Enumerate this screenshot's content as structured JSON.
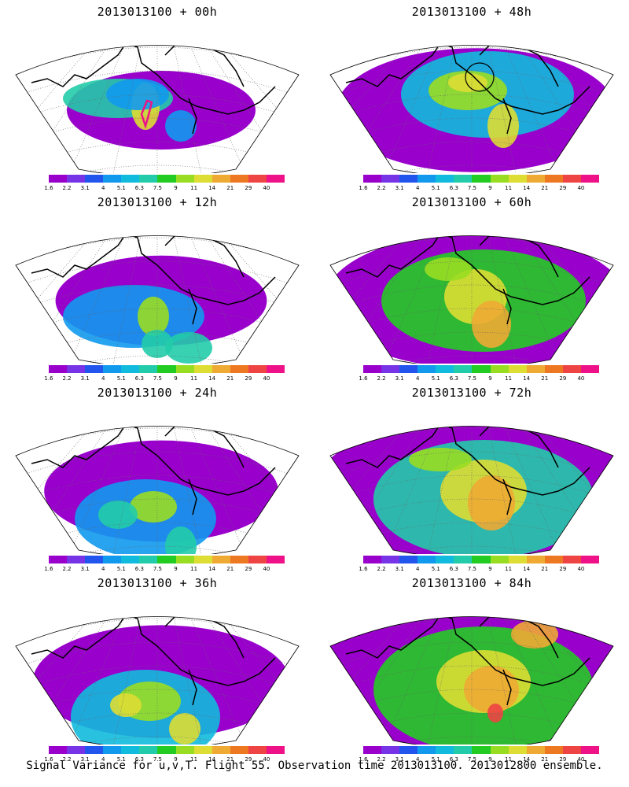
{
  "panels": [
    {
      "title": "2013013100 + 00h",
      "lead": 0
    },
    {
      "title": "2013013100 + 48h",
      "lead": 48
    },
    {
      "title": "2013013100 + 12h",
      "lead": 12
    },
    {
      "title": "2013013100 + 60h",
      "lead": 60
    },
    {
      "title": "2013013100 + 24h",
      "lead": 24
    },
    {
      "title": "2013013100 + 72h",
      "lead": 72
    },
    {
      "title": "2013013100 + 36h",
      "lead": 36
    },
    {
      "title": "2013013100 + 84h",
      "lead": 84
    }
  ],
  "colorbar": {
    "labels": [
      "1.6",
      "2.2",
      "3.1",
      "4",
      "5.1",
      "6.3",
      "7.5",
      "9",
      "11",
      "14",
      "21",
      "29",
      "40"
    ],
    "colors": [
      "#9900cc",
      "#7733e6",
      "#2255ee",
      "#1199ee",
      "#11bbdd",
      "#22ccaa",
      "#22cc22",
      "#99dd22",
      "#dddd33",
      "#eeaa33",
      "#ee7722",
      "#ee4444",
      "#ee1188"
    ]
  },
  "footer": "Signal Variance for u,v,T. Flight 55. Observation time 2013013100. 2013012800 ensemble."
}
